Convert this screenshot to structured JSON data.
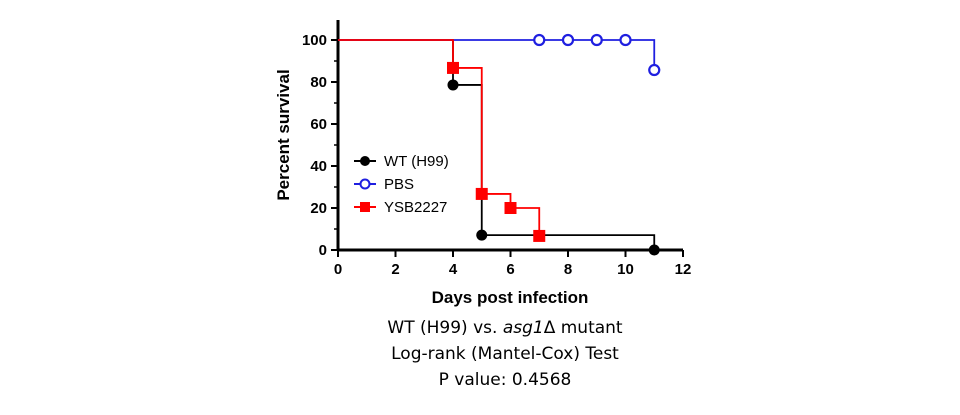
{
  "chart_data": {
    "type": "line",
    "xlabel": "Days post infection",
    "ylabel": "Percent survival",
    "xlim": [
      0,
      12
    ],
    "ylim": [
      0,
      100
    ],
    "xticks": [
      "0",
      "2",
      "4",
      "6",
      "8",
      "10",
      "12"
    ],
    "yticks": [
      "0",
      "20",
      "40",
      "60",
      "80",
      "100"
    ],
    "grid": false,
    "legend": "center-left",
    "series": [
      {
        "name": "WT (H99)",
        "color": "#000000",
        "marker": "filled-circle",
        "x": [
          0,
          4,
          5,
          11
        ],
        "y": [
          100,
          78.6,
          7.1,
          0
        ],
        "markers": [
          [
            4,
            78.6
          ],
          [
            5,
            7.1
          ],
          [
            11,
            0
          ]
        ]
      },
      {
        "name": "PBS",
        "color": "#1f1fe0",
        "marker": "open-circle",
        "x": [
          0,
          11
        ],
        "y": [
          100,
          85.7
        ],
        "markers": [
          [
            7,
            100
          ],
          [
            8,
            100
          ],
          [
            9,
            100
          ],
          [
            10,
            100
          ],
          [
            11,
            85.7
          ]
        ]
      },
      {
        "name": "YSB2227",
        "color": "#ff0000",
        "marker": "filled-square",
        "x": [
          0,
          4,
          5,
          6,
          7
        ],
        "y": [
          100,
          86.7,
          26.7,
          20,
          6.7
        ],
        "markers": [
          [
            4,
            86.7
          ],
          [
            5,
            26.7
          ],
          [
            6,
            20
          ],
          [
            7,
            6.7
          ]
        ]
      }
    ]
  },
  "caption": {
    "line1_prefix": "WT (H99) vs. ",
    "line1_italic": "asg1",
    "line1_suffix": "Δ mutant",
    "line2": "Log-rank (Mantel-Cox) Test",
    "line3": "P value: 0.4568"
  }
}
